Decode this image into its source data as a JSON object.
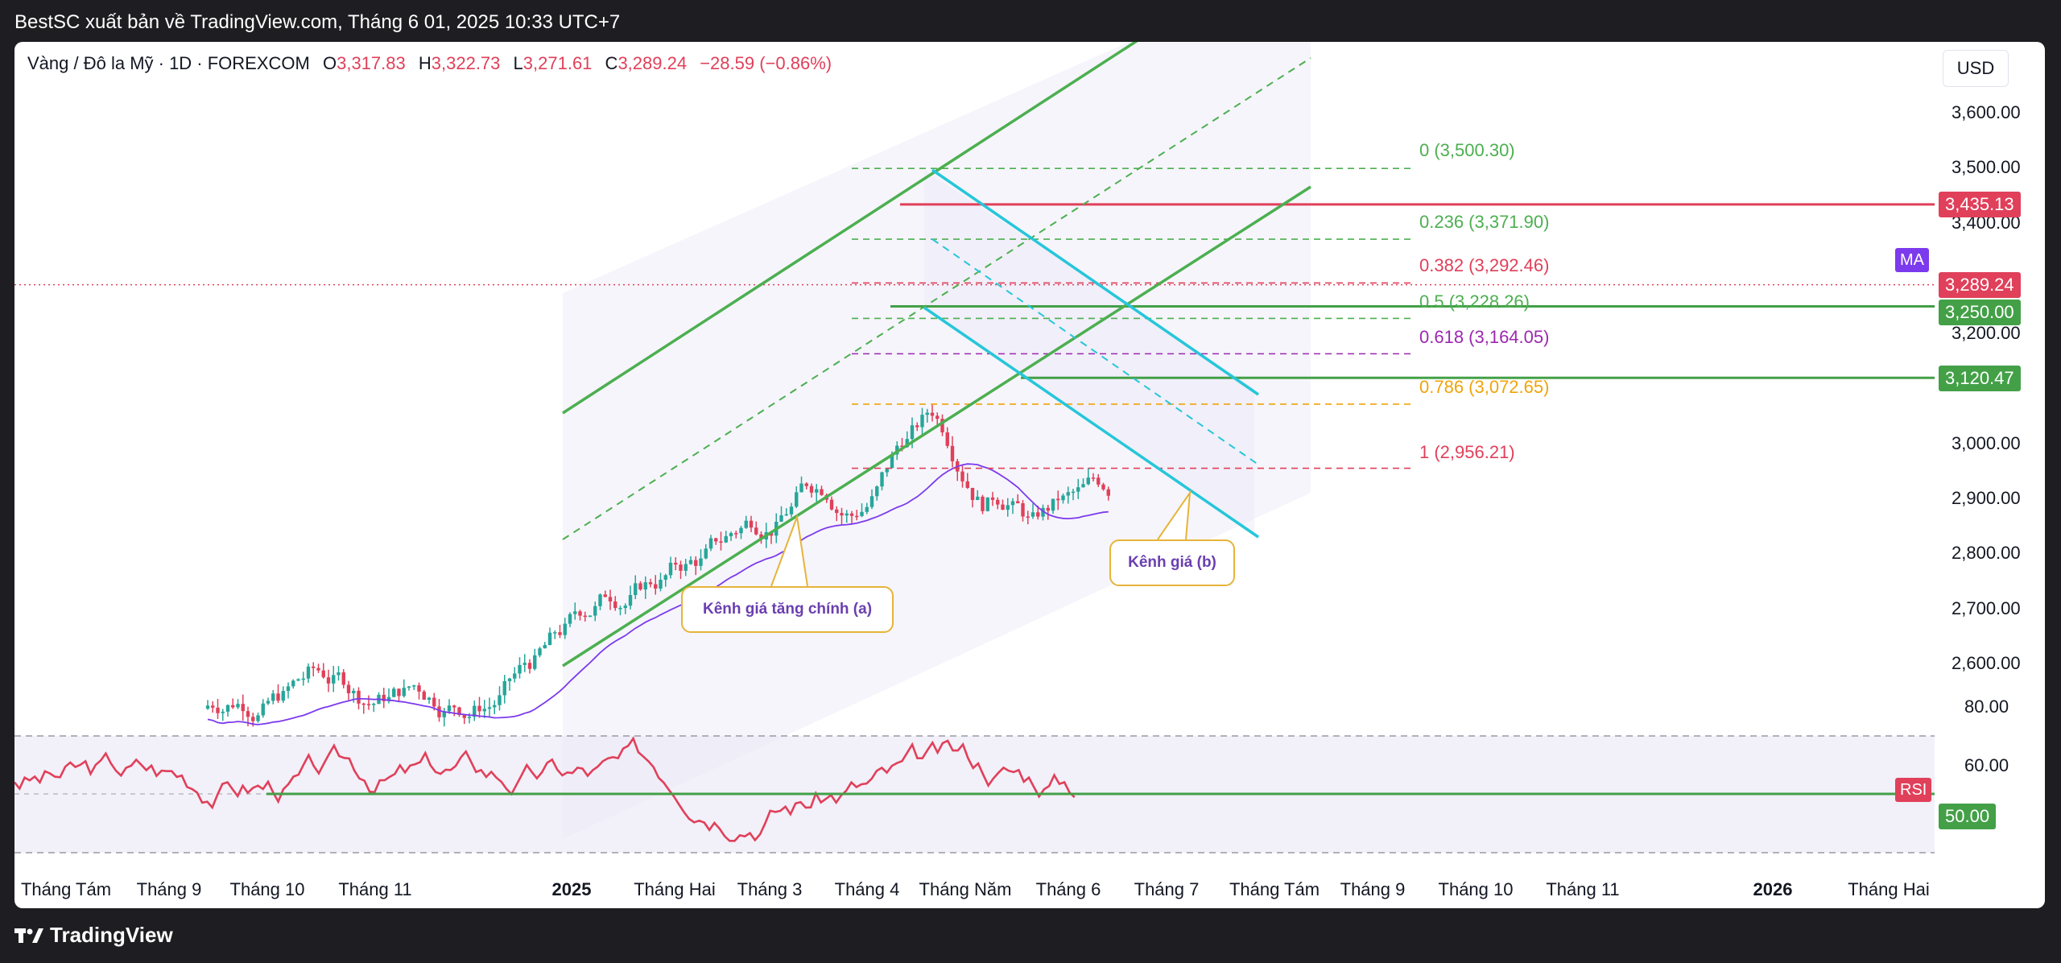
{
  "header": {
    "title": "BestSC xuất bản về TradingView.com, Tháng 6 01, 2025 10:33 UTC+7"
  },
  "legend": {
    "symbol": "Vàng / Đô la Mỹ · 1D · FOREXCOM",
    "o_label": "O",
    "o": "3,317.83",
    "h_label": "H",
    "h": "3,322.73",
    "l_label": "L",
    "l": "3,271.61",
    "c_label": "C",
    "c": "3,289.24",
    "change": "−28.59 (−0.86%)"
  },
  "currency": "USD",
  "y_axis": {
    "ticks": [
      "3,600.00",
      "3,500.00",
      "3,400.00",
      "3,200.00",
      "3,000.00",
      "2,900.00",
      "2,800.00",
      "2,700.00",
      "2,600.00"
    ]
  },
  "x_axis": {
    "labels": [
      "Tháng Tám",
      "Tháng 9",
      "Tháng 10",
      "Tháng 11",
      "2025",
      "Tháng Hai",
      "Tháng 3",
      "Tháng 4",
      "Tháng Năm",
      "Tháng 6",
      "Tháng 7",
      "Tháng Tám",
      "Tháng 9",
      "Tháng 10",
      "Tháng 11",
      "2026",
      "Tháng Hai"
    ]
  },
  "price_labels": [
    {
      "value": "3,435.13",
      "color": "#e0405a"
    },
    {
      "value": "3,289.24",
      "color": "#e0405a"
    },
    {
      "value": "3,250.00",
      "color": "#43a047"
    },
    {
      "value": "3,120.47",
      "color": "#43a047"
    }
  ],
  "ma_tag": {
    "label": "MA",
    "color": "#7c3aed"
  },
  "fib_levels": [
    {
      "label": "0 (3,500.30)",
      "color": "#4caf50"
    },
    {
      "label": "0.236 (3,371.90)",
      "color": "#4caf50"
    },
    {
      "label": "0.382 (3,292.46)",
      "color": "#e0405a"
    },
    {
      "label": "0.5 (3,228.26)",
      "color": "#4caf50"
    },
    {
      "label": "0.618 (3,164.05)",
      "color": "#9c27b0"
    },
    {
      "label": "0.786 (3,072.65)",
      "color": "#f0a30a"
    },
    {
      "label": "1 (2,956.21)",
      "color": "#e0405a"
    }
  ],
  "callouts": {
    "a": "Kênh giá tăng chính (a)",
    "b": "Kênh giá (b)"
  },
  "rsi": {
    "tag": "RSI",
    "level_label": "50.00",
    "ticks": [
      "80.00",
      "60.00"
    ],
    "line_color": "#e0405a"
  },
  "footer": {
    "brand": "TradingView"
  },
  "chart_data": {
    "type": "candlestick",
    "y_unit": "USD",
    "ylim": [
      2560,
      3680
    ],
    "price_start": 2520,
    "drift_weights": [
      1.2,
      0.8,
      0.6,
      0.9,
      -0.5,
      -0.9,
      0.3,
      0.5,
      -0.2,
      0.4,
      0.9,
      1.4,
      1.2,
      1.0,
      1.6,
      1.2,
      0.9,
      1.0,
      0.6,
      0.8,
      1.4,
      1.3,
      1.8,
      1.0,
      -0.6,
      1.8,
      3.2,
      1.4,
      -1.8,
      -1.6,
      1.2,
      -2.0,
      0.9,
      -0.3,
      0.2
    ],
    "moving_average": "MA",
    "horizontal_levels": [
      3435.13,
      3250.0,
      3120.47
    ],
    "last_price": 3289.24,
    "fibonacci": [
      3500.3,
      3371.9,
      3292.46,
      3228.26,
      3164.05,
      3072.65,
      2956.21
    ],
    "rsi_levels": [
      80,
      60,
      50
    ]
  }
}
